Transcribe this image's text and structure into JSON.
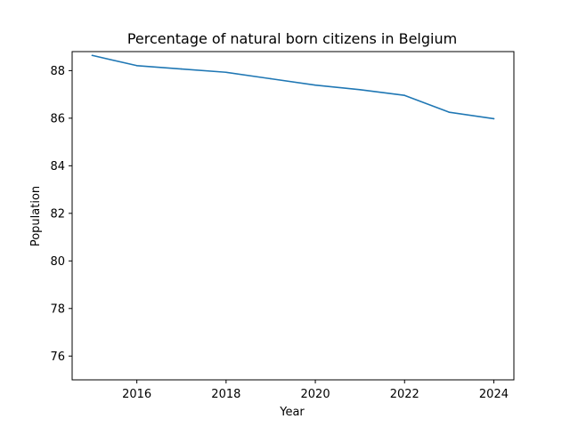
{
  "chart_data": {
    "type": "line",
    "title": "Percentage of natural born citizens in Belgium",
    "xlabel": "Year",
    "ylabel": "Population",
    "xlim": [
      2014.55,
      2024.45
    ],
    "ylim": [
      75.0,
      88.8
    ],
    "xticks": [
      2016,
      2018,
      2020,
      2022,
      2024
    ],
    "yticks": [
      76,
      78,
      80,
      82,
      84,
      86,
      88
    ],
    "grid": false,
    "x": [
      2015,
      2016,
      2017,
      2018,
      2019,
      2020,
      2021,
      2022,
      2023,
      2024
    ],
    "series": [
      {
        "color": "#1f77b4",
        "values": [
          88.64,
          88.21,
          88.07,
          87.93,
          87.66,
          87.39,
          87.2,
          86.96,
          86.25,
          85.98
        ]
      }
    ]
  }
}
